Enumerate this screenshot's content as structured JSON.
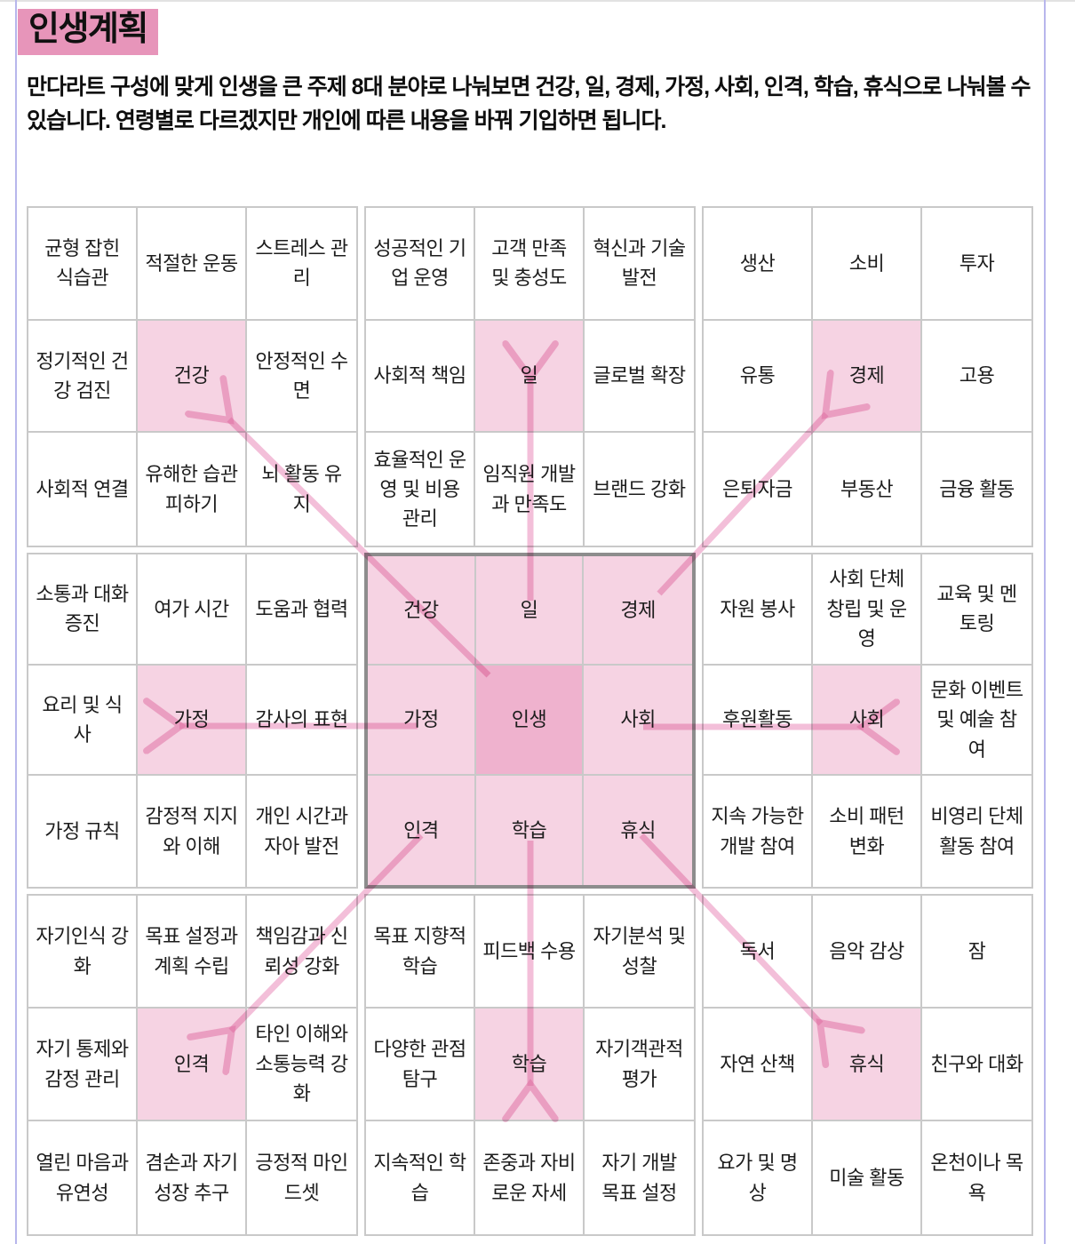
{
  "page": {
    "title": "인생계획",
    "intro": "만다라트 구성에 맞게 인생을 큰 주제 8대 분야로 나눠보면 건강, 일, 경제, 가정, 사회, 인격, 학습, 휴식으로 나눠볼 수 있습니다. 연령별로 다르겠지만 개인에 따른 내용을 바꿔 기입하면 됩니다."
  },
  "colors": {
    "title_bg": "#e795ba",
    "cell_pink": "#f6d3e3",
    "life_pink": "#efb2ce",
    "arrow_pink": "#e87fb4",
    "grid_border": "#c9c9c9",
    "center_border": "#8d8d8d",
    "page_edge": "#b8b6ec",
    "text": "#1d1d1d"
  },
  "mandalart": {
    "center_theme": "인생",
    "themes": [
      "건강",
      "일",
      "경제",
      "가정",
      "사회",
      "인격",
      "학습",
      "휴식"
    ],
    "blocks": [
      {
        "id": "health",
        "theme": "건강",
        "cells": [
          "균형 잡힌 식습관",
          "적절한 운동",
          "스트레스 관리",
          "정기적인 건강 검진",
          "건강",
          "안정적인 수면",
          "사회적 연결",
          "유해한 습관 피하기",
          "뇌 활동 유지"
        ]
      },
      {
        "id": "work",
        "theme": "일",
        "cells": [
          "성공적인 기업 운영",
          "고객 만족 및 충성도",
          "혁신과 기술 발전",
          "사회적 책임",
          "일",
          "글로벌 확장",
          "효율적인 운영 및 비용 관리",
          "임직원 개발과 만족도",
          "브랜드 강화"
        ]
      },
      {
        "id": "economy",
        "theme": "경제",
        "cells": [
          "생산",
          "소비",
          "투자",
          "유통",
          "경제",
          "고용",
          "은퇴자금",
          "부동산",
          "금융 활동"
        ]
      },
      {
        "id": "family",
        "theme": "가정",
        "cells": [
          "소통과 대화 증진",
          "여가 시간",
          "도움과 협력",
          "요리 및 식사",
          "가정",
          "감사의 표현",
          "가정 규칙",
          "감정적 지지와 이해",
          "개인 시간과 자아 발전"
        ]
      },
      {
        "id": "life",
        "theme": "인생",
        "cells": [
          "건강",
          "일",
          "경제",
          "가정",
          "인생",
          "사회",
          "인격",
          "학습",
          "휴식"
        ]
      },
      {
        "id": "society",
        "theme": "사회",
        "cells": [
          "자원 봉사",
          "사회 단체 창립 및 운영",
          "교육 및 멘토링",
          "후원활동",
          "사회",
          "문화 이벤트 및 예술 참여",
          "지속 가능한 개발 참여",
          "소비 패턴 변화",
          "비영리 단체 활동 참여"
        ]
      },
      {
        "id": "character",
        "theme": "인격",
        "cells": [
          "자기인식 강화",
          "목표 설정과 계획 수립",
          "책임감과 신뢰성 강화",
          "자기 통제와 감정 관리",
          "인격",
          "타인 이해와 소통능력 강화",
          "열린 마음과 유연성",
          "겸손과 자기 성장 추구",
          "긍정적 마인드셋"
        ]
      },
      {
        "id": "learning",
        "theme": "학습",
        "cells": [
          "목표 지향적 학습",
          "피드백 수용",
          "자기분석 및 성찰",
          "다양한 관점 탐구",
          "학습",
          "자기객관적 평가",
          "지속적인 학습",
          "존중과 자비로운 자세",
          "자기 개발 목표 설정"
        ]
      },
      {
        "id": "rest",
        "theme": "휴식",
        "cells": [
          "독서",
          "음악 감상",
          "잠",
          "자연 산책",
          "휴식",
          "친구와 대화",
          "요가 및 명상",
          "미술 활동",
          "온천이나 목욕"
        ]
      }
    ]
  }
}
